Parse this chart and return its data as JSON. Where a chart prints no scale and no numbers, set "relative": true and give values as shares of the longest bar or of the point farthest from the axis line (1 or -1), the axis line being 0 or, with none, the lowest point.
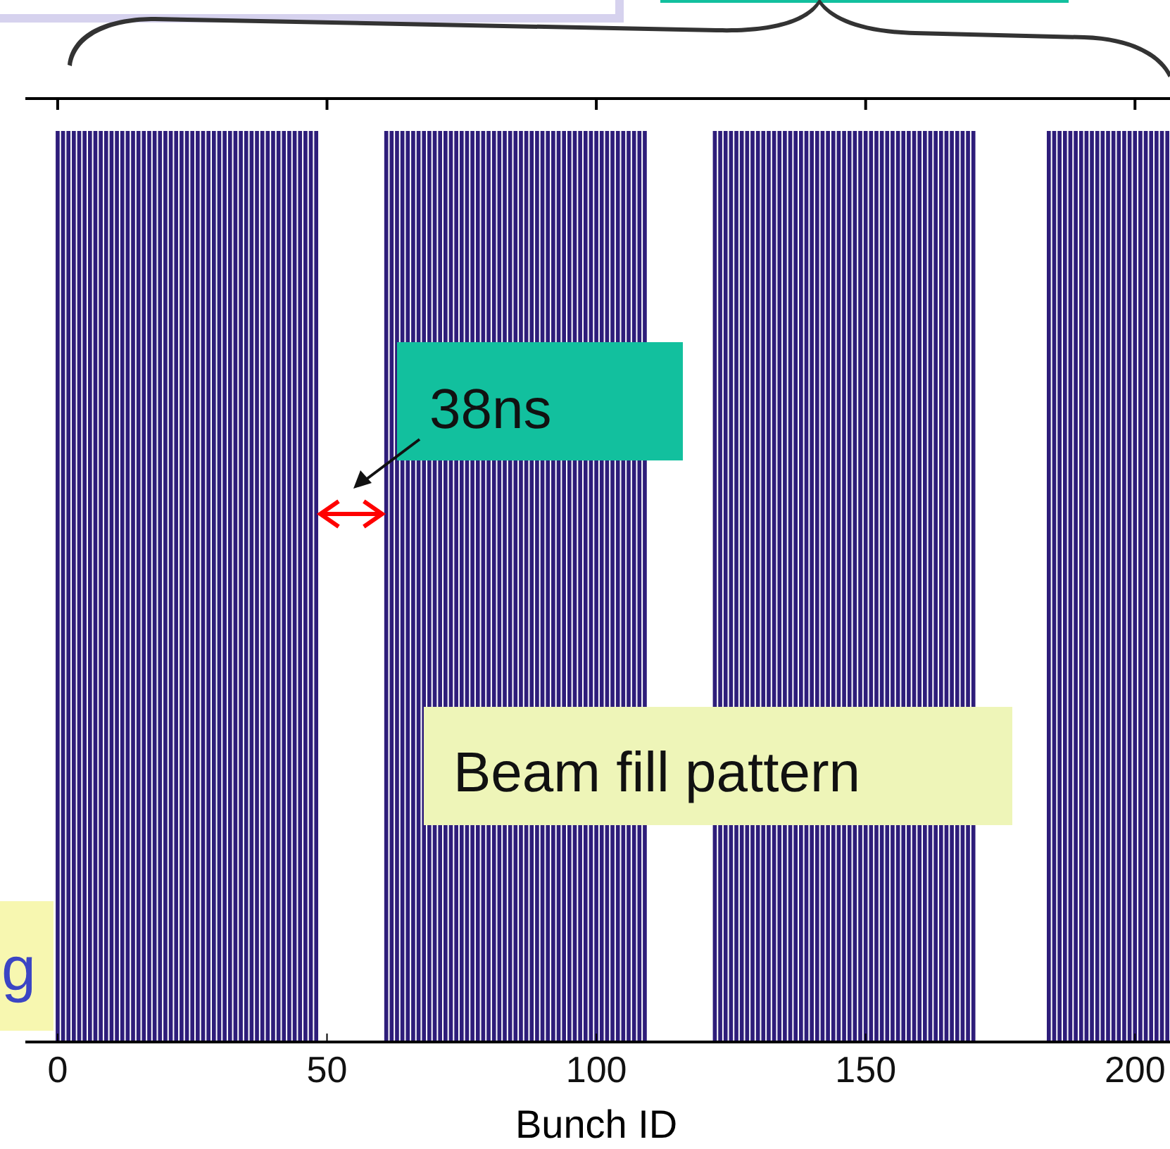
{
  "chart_data": {
    "type": "bar",
    "relative": true,
    "xlabel": "Bunch ID",
    "color": "#2e1d7a",
    "x": [
      0,
      1,
      2,
      3,
      4,
      5,
      6,
      7,
      8,
      9,
      10,
      11,
      12,
      13,
      14,
      15,
      16,
      17,
      18,
      19,
      20,
      21,
      22,
      23,
      24,
      25,
      26,
      27,
      28,
      29,
      30,
      31,
      32,
      33,
      34,
      35,
      36,
      37,
      38,
      39,
      40,
      41,
      42,
      43,
      44,
      45,
      46,
      47,
      48,
      61,
      62,
      63,
      64,
      65,
      66,
      67,
      68,
      69,
      70,
      71,
      72,
      73,
      74,
      75,
      76,
      77,
      78,
      79,
      80,
      81,
      82,
      83,
      84,
      85,
      86,
      87,
      88,
      89,
      90,
      91,
      92,
      93,
      94,
      95,
      96,
      97,
      98,
      99,
      100,
      101,
      102,
      103,
      104,
      105,
      106,
      107,
      108,
      109,
      122,
      123,
      124,
      125,
      126,
      127,
      128,
      129,
      130,
      131,
      132,
      133,
      134,
      135,
      136,
      137,
      138,
      139,
      140,
      141,
      142,
      143,
      144,
      145,
      146,
      147,
      148,
      149,
      150,
      151,
      152,
      153,
      154,
      155,
      156,
      157,
      158,
      159,
      160,
      161,
      162,
      163,
      164,
      165,
      166,
      167,
      168,
      169,
      170,
      184,
      185,
      186,
      187,
      188,
      189,
      190,
      191,
      192,
      193,
      194,
      195,
      196,
      197,
      198,
      199,
      200,
      201,
      202,
      203,
      204,
      205,
      206
    ],
    "values": [
      1,
      1,
      1,
      1,
      1,
      1,
      1,
      1,
      1,
      1,
      1,
      1,
      1,
      1,
      1,
      1,
      1,
      1,
      1,
      1,
      1,
      1,
      1,
      1,
      1,
      1,
      1,
      1,
      1,
      1,
      1,
      1,
      1,
      1,
      1,
      1,
      1,
      1,
      1,
      1,
      1,
      1,
      1,
      1,
      1,
      1,
      1,
      1,
      1,
      1,
      1,
      1,
      1,
      1,
      1,
      1,
      1,
      1,
      1,
      1,
      1,
      1,
      1,
      1,
      1,
      1,
      1,
      1,
      1,
      1,
      1,
      1,
      1,
      1,
      1,
      1,
      1,
      1,
      1,
      1,
      1,
      1,
      1,
      1,
      1,
      1,
      1,
      1,
      1,
      1,
      1,
      1,
      1,
      1,
      1,
      1,
      1,
      1,
      1,
      1,
      1,
      1,
      1,
      1,
      1,
      1,
      1,
      1,
      1,
      1,
      1,
      1,
      1,
      1,
      1,
      1,
      1,
      1,
      1,
      1,
      1,
      1,
      1,
      1,
      1,
      1,
      1,
      1,
      1,
      1,
      1,
      1,
      1,
      1,
      1,
      1,
      1,
      1,
      1,
      1,
      1,
      1,
      1,
      1,
      1,
      1,
      1,
      1,
      1,
      1,
      1,
      1,
      1,
      1,
      1,
      1,
      1,
      1,
      1,
      1,
      1,
      1,
      1,
      1,
      1,
      1,
      1,
      1,
      1,
      1
    ],
    "xlim": [
      -6,
      206.5
    ],
    "xticks": [
      0,
      50,
      100,
      150,
      200
    ],
    "annotations": [
      "38ns",
      "Beam fill pattern",
      "g"
    ]
  }
}
